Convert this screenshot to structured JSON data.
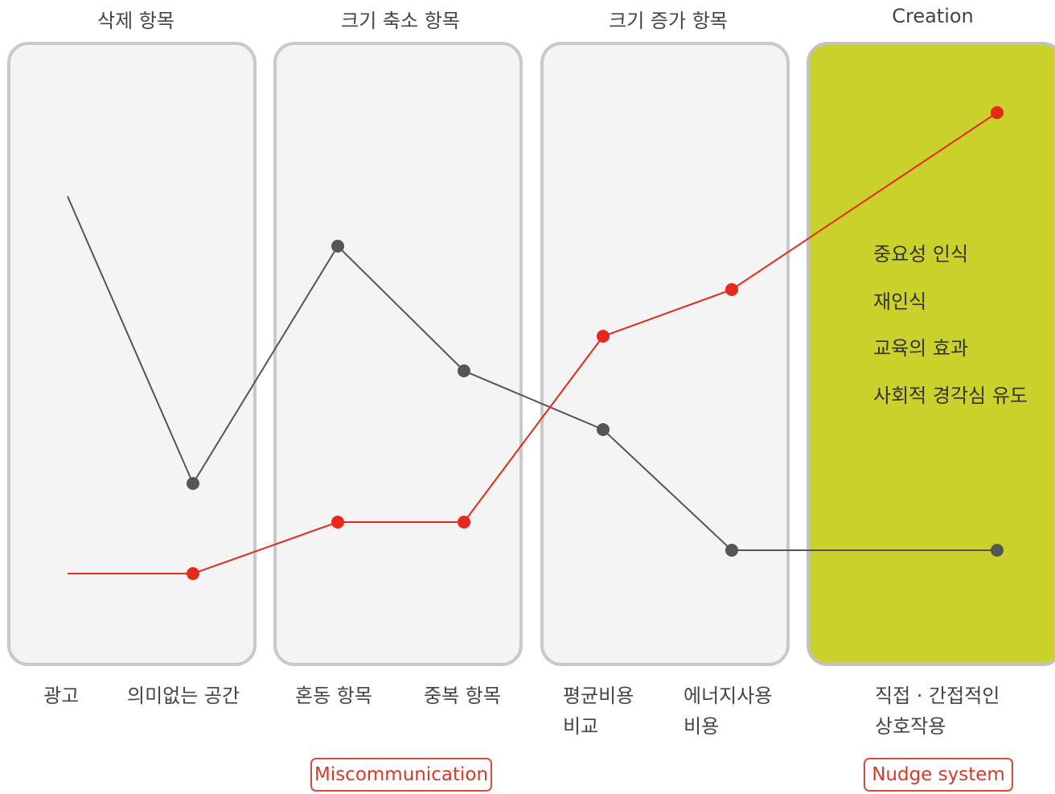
{
  "panels": [
    {
      "title": "삭제 항목"
    },
    {
      "title": "크기 축소 항목"
    },
    {
      "title": "크기 증가 항목"
    },
    {
      "title": "Creation",
      "highlight_color": "#c9d12a"
    }
  ],
  "x_labels": [
    {
      "lines": [
        "광고"
      ]
    },
    {
      "lines": [
        "의미없는 공간"
      ]
    },
    {
      "lines": [
        "혼동 항목"
      ]
    },
    {
      "lines": [
        "중복 항목"
      ]
    },
    {
      "lines": [
        "평균비용",
        "비교"
      ]
    },
    {
      "lines": [
        "에너지사용",
        "비용"
      ]
    },
    {
      "lines": [
        "직접 · 간접적인",
        "상호작용"
      ]
    }
  ],
  "creation_notes": [
    "중요성 인식",
    "재인식",
    "교육의 효과",
    "사회적 경각심 유도"
  ],
  "badges": {
    "miscommunication": "Miscommunication",
    "nudge": "Nudge system"
  },
  "series_colors": {
    "gray": "#555555",
    "red": "#e8281c"
  }
}
